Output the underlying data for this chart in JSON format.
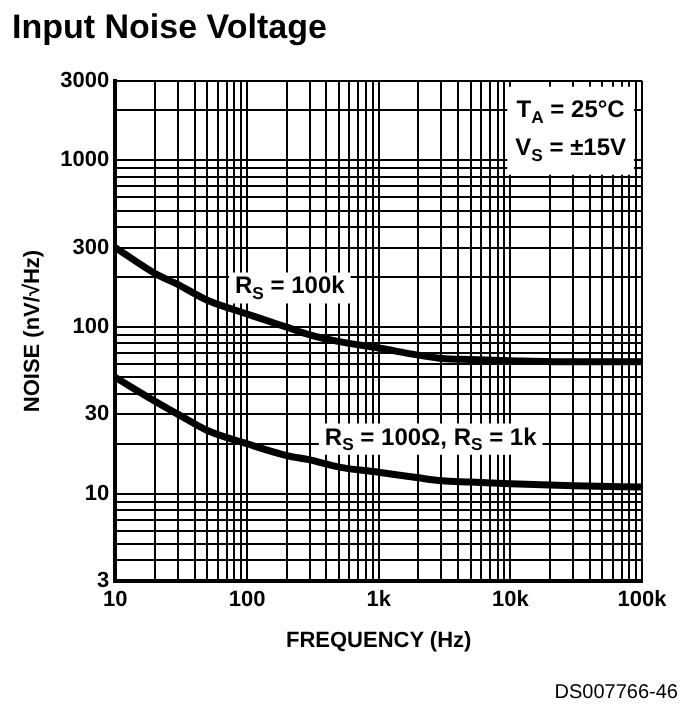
{
  "chart_data": {
    "type": "line",
    "title": "Input Noise Voltage",
    "xlabel": "FREQUENCY (Hz)",
    "ylabel": "NOISE (nV/√Hz)",
    "x": [
      10,
      20,
      30,
      50,
      100,
      200,
      300,
      500,
      1000,
      2000,
      3000,
      5000,
      10000,
      30000,
      100000
    ],
    "series": [
      {
        "name": "R$_{S}$ = 100k",
        "color": "#000000",
        "values": [
          300,
          210,
          180,
          145,
          120,
          100,
          90,
          82,
          75,
          68,
          65,
          64,
          63,
          62,
          62
        ]
      },
      {
        "name": "R$_{S}$ = 100Ω, R$_{S}$ = 1k",
        "color": "#000000",
        "values": [
          50,
          36,
          30,
          24,
          20,
          17,
          16,
          14.5,
          13.5,
          12.5,
          12,
          11.8,
          11.5,
          11.2,
          11
        ]
      }
    ],
    "log": "xy",
    "grid": true,
    "marker": "none",
    "line_style": "solid",
    "legend": false,
    "xlim": [
      10,
      100000
    ],
    "xticks": [
      10,
      {
        "value": 20,
        "label": null
      },
      {
        "value": 30,
        "label": null
      },
      {
        "value": 40,
        "label": null
      },
      {
        "value": 50,
        "label": null
      },
      {
        "value": 60,
        "label": null
      },
      {
        "value": 70,
        "label": null
      },
      {
        "value": 80,
        "label": null
      },
      {
        "value": 90,
        "label": null
      },
      100,
      {
        "value": 200,
        "label": null
      },
      {
        "value": 300,
        "label": null
      },
      {
        "value": 400,
        "label": null
      },
      {
        "value": 500,
        "label": null
      },
      {
        "value": 600,
        "label": null
      },
      {
        "value": 700,
        "label": null
      },
      {
        "value": 800,
        "label": null
      },
      {
        "value": 900,
        "label": null
      },
      {
        "value": 1000,
        "label": "1k"
      },
      {
        "value": 2000,
        "label": null
      },
      {
        "value": 3000,
        "label": null
      },
      {
        "value": 4000,
        "label": null
      },
      {
        "value": 5000,
        "label": null
      },
      {
        "value": 6000,
        "label": null
      },
      {
        "value": 7000,
        "label": null
      },
      {
        "value": 8000,
        "label": null
      },
      {
        "value": 9000,
        "label": null
      },
      {
        "value": 10000,
        "label": "10k"
      },
      {
        "value": 20000,
        "label": null
      },
      {
        "value": 30000,
        "label": null
      },
      {
        "value": 40000,
        "label": null
      },
      {
        "value": 50000,
        "label": null
      },
      {
        "value": 60000,
        "label": null
      },
      {
        "value": 70000,
        "label": null
      },
      {
        "value": 80000,
        "label": null
      },
      {
        "value": 90000,
        "label": null
      },
      {
        "value": 100000,
        "label": "100k"
      }
    ],
    "ylim": [
      3,
      3000
    ],
    "yticks": [
      3,
      {
        "value": 4,
        "label": null
      },
      {
        "value": 5,
        "label": null
      },
      {
        "value": 6,
        "label": null
      },
      {
        "value": 7,
        "label": null
      },
      {
        "value": 8,
        "label": null
      },
      {
        "value": 9,
        "label": null
      },
      10,
      {
        "value": 20,
        "label": null
      },
      30,
      {
        "value": 40,
        "label": null
      },
      {
        "value": 50,
        "label": null
      },
      {
        "value": 60,
        "label": null
      },
      {
        "value": 70,
        "label": null
      },
      {
        "value": 80,
        "label": null
      },
      {
        "value": 90,
        "label": null
      },
      100,
      {
        "value": 200,
        "label": null
      },
      300,
      {
        "value": 400,
        "label": null
      },
      {
        "value": 500,
        "label": null
      },
      {
        "value": 600,
        "label": null
      },
      {
        "value": 700,
        "label": null
      },
      {
        "value": 800,
        "label": null
      },
      {
        "value": 900,
        "label": null
      },
      1000,
      {
        "value": 2000,
        "label": null
      },
      3000
    ],
    "annotations": [
      "T$_{A}$ = 25°C",
      "V$_{S}$ = ±15V",
      "DS007766-46"
    ]
  }
}
